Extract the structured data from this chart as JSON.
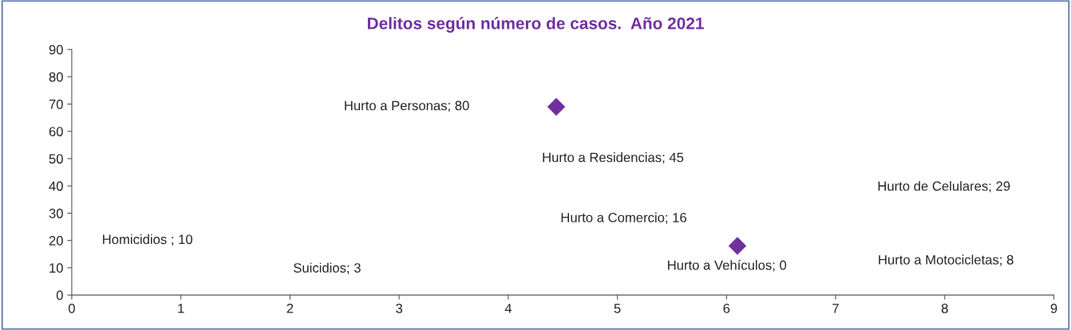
{
  "chart_data": {
    "type": "scatter",
    "title": "Delitos según número de casos.  Año 2021",
    "series": [
      {
        "color": "#7030a0",
        "x": [
          4.44,
          6.1
        ],
        "values": [
          69,
          18
        ]
      }
    ],
    "annotations": [
      "Hurto a Personas; 80",
      "Hurto a Residencias; 45",
      "Hurto de Celulares; 29",
      "Hurto a Comercio; 16",
      "Homicidios ; 10",
      "Suicidios; 3",
      "Hurto a Vehículos; 0",
      "Hurto a Motocicletas; 8"
    ],
    "marker": "diamond",
    "xlim": [
      0,
      9
    ],
    "xticks": [
      0,
      1,
      2,
      3,
      4,
      5,
      6,
      7,
      8,
      9
    ],
    "ylim": [
      0,
      90
    ],
    "yticks": [
      0,
      10,
      20,
      30,
      40,
      50,
      60,
      70,
      80,
      90
    ],
    "grid": false,
    "legend": false
  }
}
